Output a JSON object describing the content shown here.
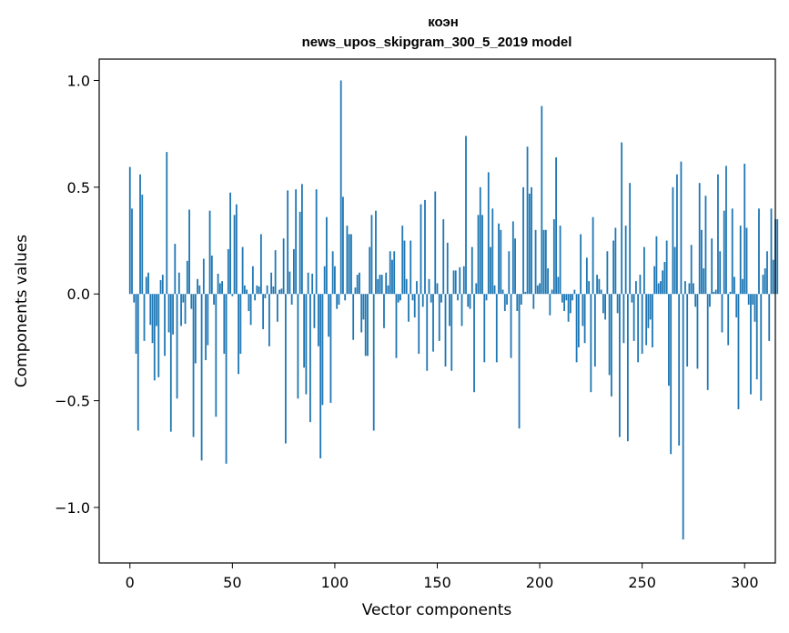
{
  "chart_data": {
    "type": "bar",
    "title": "коэн",
    "subtitle": "news_upos_skipgram_300_5_2019 model",
    "xlabel": "Vector components",
    "ylabel": "Components values",
    "xlim": [
      -15,
      315
    ],
    "ylim": [
      -1.26,
      1.1
    ],
    "xticks": [
      0,
      50,
      100,
      150,
      200,
      250,
      300
    ],
    "xtick_labels": [
      "0",
      "50",
      "100",
      "150",
      "200",
      "250",
      "300"
    ],
    "yticks": [
      -1.0,
      -0.5,
      0.0,
      0.5,
      1.0
    ],
    "ytick_labels": [
      "−1.0",
      "−0.5",
      "0.0",
      "0.5",
      "1.0"
    ],
    "bar_color": "#1f77b4",
    "values": [
      0.595,
      0.4,
      -0.04,
      -0.28,
      -0.64,
      0.56,
      0.465,
      -0.22,
      0.08,
      0.1,
      -0.145,
      -0.23,
      -0.405,
      -0.15,
      -0.39,
      0.065,
      0.09,
      -0.29,
      0.665,
      -0.18,
      -0.645,
      -0.19,
      0.235,
      -0.49,
      0.1,
      -0.15,
      -0.04,
      -0.14,
      0.155,
      0.395,
      -0.07,
      -0.67,
      -0.325,
      0.07,
      0.04,
      -0.78,
      0.165,
      -0.31,
      -0.24,
      0.39,
      0.18,
      -0.05,
      -0.575,
      0.095,
      0.05,
      0.06,
      -0.28,
      -0.795,
      0.21,
      0.475,
      -0.01,
      0.37,
      0.42,
      -0.375,
      -0.28,
      0.22,
      0.04,
      0.02,
      -0.08,
      -0.145,
      0.13,
      -0.03,
      0.04,
      0.035,
      0.28,
      -0.165,
      -0.02,
      0.04,
      -0.245,
      0.1,
      0.035,
      0.205,
      -0.13,
      0.02,
      0.025,
      0.26,
      -0.7,
      0.485,
      0.105,
      -0.05,
      0.21,
      0.49,
      -0.49,
      0.385,
      0.515,
      -0.345,
      -0.47,
      0.1,
      -0.6,
      0.095,
      -0.16,
      0.49,
      -0.245,
      -0.77,
      -0.52,
      0.13,
      0.36,
      -0.2,
      -0.51,
      0.2,
      0.13,
      -0.07,
      -0.05,
      1.0,
      0.455,
      -0.03,
      0.32,
      0.28,
      0.28,
      -0.215,
      0.03,
      0.09,
      0.1,
      -0.18,
      -0.12,
      -0.29,
      -0.29,
      0.22,
      0.37,
      -0.64,
      0.39,
      0.07,
      0.09,
      0.09,
      -0.16,
      0.1,
      0.04,
      0.2,
      0.16,
      0.2,
      -0.3,
      -0.04,
      -0.03,
      0.32,
      0.25,
      0.07,
      -0.13,
      0.25,
      -0.03,
      -0.11,
      0.06,
      -0.28,
      0.42,
      -0.06,
      0.44,
      -0.36,
      0.07,
      -0.04,
      -0.27,
      0.48,
      0.05,
      -0.22,
      -0.04,
      0.35,
      -0.34,
      0.24,
      -0.15,
      -0.36,
      0.11,
      0.11,
      -0.03,
      0.125,
      -0.15,
      0.13,
      0.74,
      -0.06,
      -0.07,
      0.22,
      -0.46,
      0.05,
      0.37,
      0.5,
      0.37,
      -0.32,
      -0.03,
      0.57,
      0.22,
      0.4,
      0.04,
      -0.32,
      0.33,
      0.3,
      0.02,
      -0.08,
      -0.05,
      0.2,
      -0.3,
      0.34,
      0.26,
      -0.08,
      -0.63,
      -0.05,
      0.5,
      0.01,
      0.69,
      0.47,
      0.5,
      -0.07,
      0.3,
      0.04,
      0.05,
      0.88,
      0.3,
      0.3,
      0.12,
      -0.1,
      0.02,
      0.35,
      0.64,
      0.08,
      0.32,
      -0.04,
      -0.08,
      -0.03,
      -0.13,
      -0.09,
      -0.03,
      0.02,
      -0.32,
      -0.25,
      0.28,
      -0.15,
      -0.23,
      0.17,
      0.06,
      -0.46,
      0.36,
      -0.34,
      0.09,
      0.07,
      0.02,
      -0.09,
      -0.12,
      0.2,
      -0.38,
      -0.48,
      0.25,
      0.31,
      -0.09,
      -0.67,
      0.71,
      -0.23,
      0.32,
      -0.69,
      0.52,
      -0.04,
      -0.22,
      0.06,
      -0.32,
      0.09,
      -0.28,
      0.22,
      -0.24,
      -0.16,
      -0.12,
      -0.25,
      0.13,
      0.27,
      0.05,
      0.06,
      0.11,
      0.15,
      0.25,
      -0.43,
      -0.75,
      0.5,
      0.22,
      0.56,
      -0.71,
      0.62,
      -1.15,
      0.06,
      -0.34,
      0.05,
      0.23,
      0.05,
      -0.06,
      -0.35,
      0.52,
      0.3,
      0.12,
      0.46,
      -0.45,
      -0.06,
      0.26,
      0.01,
      0.02,
      0.56,
      0.2,
      -0.18,
      0.39,
      0.6,
      -0.24,
      0.01,
      0.4,
      0.08,
      -0.11,
      -0.54,
      0.32,
      0.07,
      0.61,
      0.31,
      -0.05,
      -0.47,
      -0.05,
      -0.13,
      -0.4,
      0.4,
      -0.5,
      0.09,
      0.12,
      0.2,
      -0.22,
      0.4,
      0.16,
      0.35,
      0.35
    ]
  }
}
